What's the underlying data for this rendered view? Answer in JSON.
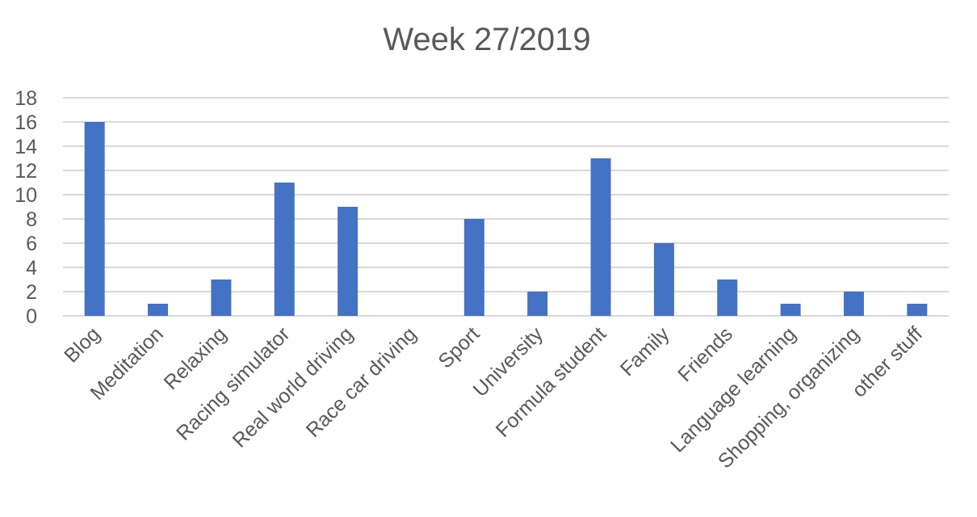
{
  "chart_data": {
    "type": "bar",
    "title": "Week 27/2019",
    "xlabel": "",
    "ylabel": "",
    "ylim": [
      0,
      18
    ],
    "yticks": [
      0,
      2,
      4,
      6,
      8,
      10,
      12,
      14,
      16,
      18
    ],
    "grid": true,
    "legend": "none",
    "bar_color": "#4472C4",
    "categories": [
      "Blog",
      "Meditation",
      "Relaxing",
      "Racing simulator",
      "Real world driving",
      "Race car driving",
      "Sport",
      "University",
      "Formula student",
      "Family",
      "Friends",
      "Language learning",
      "Shopping, organizing",
      "other stuff"
    ],
    "values": [
      16,
      1,
      3,
      11,
      9,
      0,
      8,
      2,
      13,
      6,
      3,
      1,
      2,
      1
    ]
  }
}
